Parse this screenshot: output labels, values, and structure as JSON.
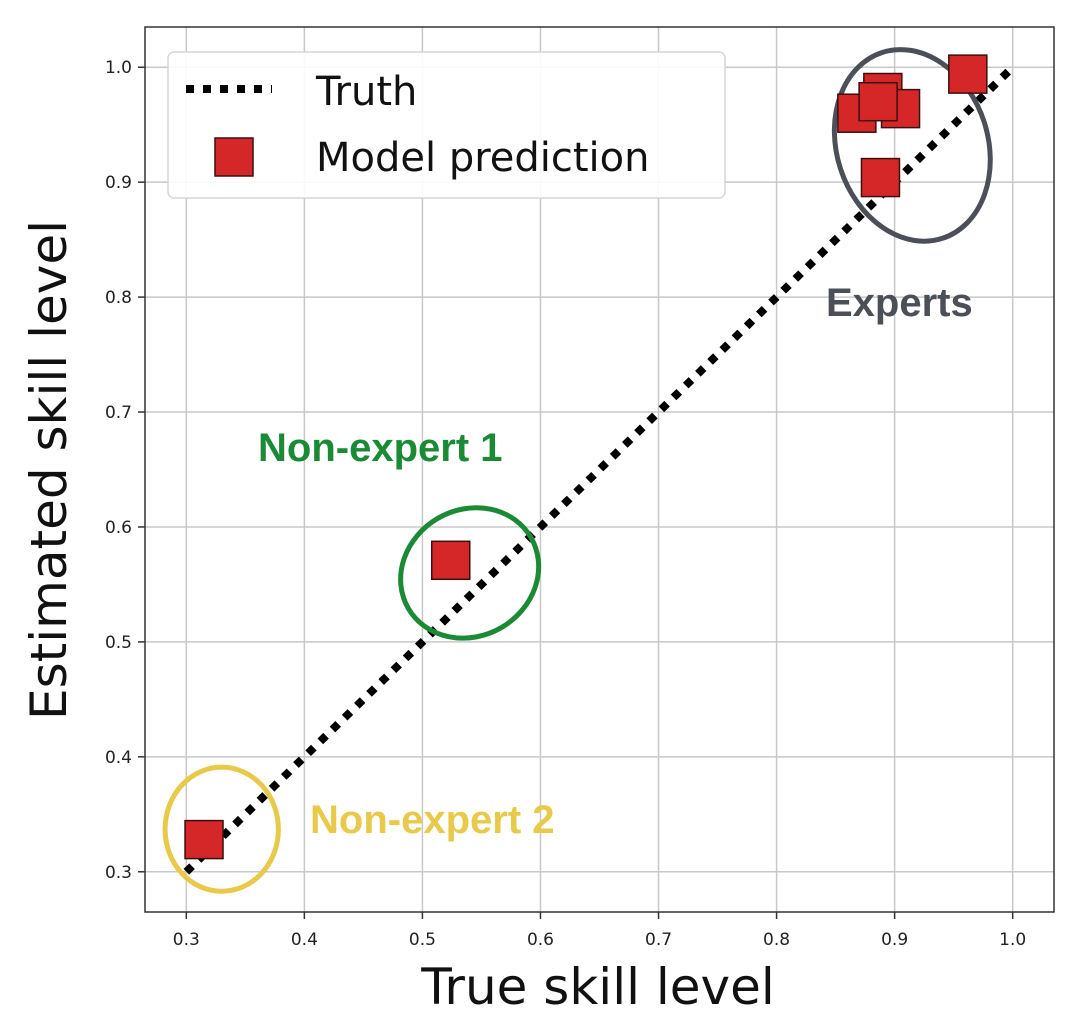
{
  "chart_data": {
    "type": "scatter",
    "xlabel": "True skill level",
    "ylabel": "Estimated skill level",
    "xlim": [
      0.265,
      1.035
    ],
    "ylim": [
      0.265,
      1.035
    ],
    "xticks": [
      "0.3",
      "0.4",
      "0.5",
      "0.6",
      "0.7",
      "0.8",
      "0.9",
      "1.0"
    ],
    "yticks": [
      "0.3",
      "0.4",
      "0.5",
      "0.6",
      "0.7",
      "0.8",
      "0.9",
      "1.0"
    ],
    "grid": true,
    "legend_position": "top-left",
    "series": [
      {
        "name": "Truth",
        "kind": "dotted-line",
        "color": "#000000",
        "x": [
          0.3,
          1.0
        ],
        "y": [
          0.3,
          1.0
        ]
      },
      {
        "name": "Model prediction",
        "kind": "square-markers",
        "color": "#d62728",
        "edge_color": "#3a1010",
        "x": [
          0.315,
          0.524,
          0.888,
          0.962,
          0.868,
          0.89,
          0.905,
          0.886
        ],
        "y": [
          0.328,
          0.571,
          0.904,
          0.994,
          0.96,
          0.978,
          0.964,
          0.97
        ]
      }
    ],
    "annotations": [
      {
        "label": "Experts",
        "color": "#4b4f57",
        "cx": 0.915,
        "cy": 0.932,
        "rx": 0.064,
        "ry": 0.085,
        "angle": -18
      },
      {
        "label": "Non-expert 1",
        "color": "#1a8a35",
        "cx": 0.54,
        "cy": 0.56,
        "rx": 0.06,
        "ry": 0.055,
        "angle": -30
      },
      {
        "label": "Non-expert 2",
        "color": "#e9c94a",
        "cx": 0.33,
        "cy": 0.337,
        "rx": 0.048,
        "ry": 0.054,
        "angle": 0
      }
    ]
  }
}
